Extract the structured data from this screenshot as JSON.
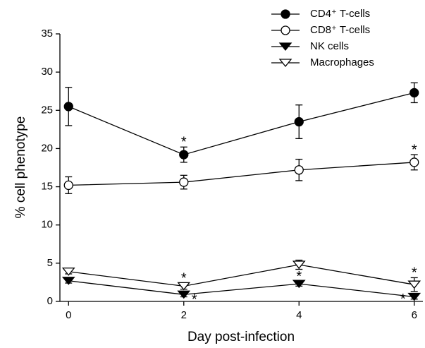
{
  "chart_data": {
    "type": "line",
    "x_label": "Day post-infection",
    "y_label": "% cell phenotype",
    "x": [
      0,
      2,
      4,
      6
    ],
    "xlim": [
      -0.15,
      6.15
    ],
    "xticks": [
      0,
      2,
      4,
      6
    ],
    "ylim": [
      0,
      35
    ],
    "yticks": [
      0,
      5,
      10,
      15,
      20,
      25,
      30,
      35
    ],
    "legend_position": "top-right",
    "series": [
      {
        "name": "CD4⁺ T-cells",
        "color": "#000000",
        "marker": "circle",
        "filled": true,
        "values": [
          25.5,
          19.2,
          23.5,
          27.3
        ],
        "errors": [
          2.5,
          1.0,
          2.2,
          1.3
        ],
        "annotations": [
          null,
          "*",
          null,
          null
        ]
      },
      {
        "name": "CD8⁺ T-cells",
        "color": "#000000",
        "marker": "circle",
        "filled": false,
        "values": [
          15.2,
          15.6,
          17.2,
          18.2
        ],
        "errors": [
          1.1,
          0.9,
          1.4,
          1.0
        ],
        "annotations": [
          null,
          null,
          null,
          "*"
        ]
      },
      {
        "name": "NK cells",
        "color": "#000000",
        "marker": "triangle-down",
        "filled": true,
        "values": [
          2.7,
          0.9,
          2.3,
          0.6
        ],
        "errors": [
          0.3,
          0.3,
          0.3,
          0.3
        ],
        "annotations": [
          null,
          "*",
          "*",
          "*"
        ]
      },
      {
        "name": "Macrophages",
        "color": "#000000",
        "marker": "triangle-down",
        "filled": false,
        "values": [
          3.9,
          2.0,
          4.8,
          2.2
        ],
        "errors": [
          0.3,
          0.4,
          0.6,
          0.9
        ],
        "annotations": [
          null,
          "*",
          null,
          "*"
        ]
      }
    ]
  }
}
